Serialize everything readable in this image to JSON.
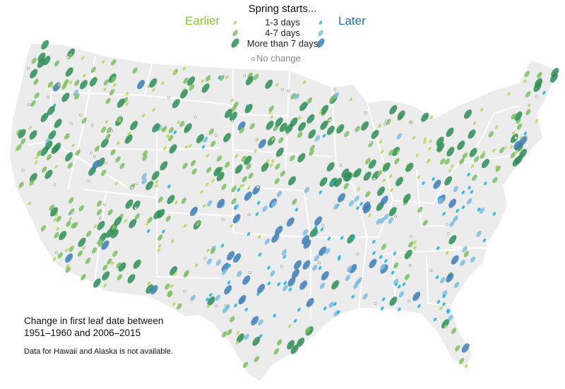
{
  "legend": {
    "title": "Spring starts...",
    "earlier_label": "Earlier",
    "later_label": "Later",
    "levels": [
      "1-3 days",
      "4-7 days",
      "More than 7 days"
    ],
    "no_change_label": "No change",
    "colors": {
      "earlier": [
        "#b9d65a",
        "#7cc063",
        "#2d8f56"
      ],
      "later": [
        "#14b1e7",
        "#7cbde2",
        "#3c7eb8"
      ],
      "map_fill": "#ececec",
      "state_border": "#ffffff"
    }
  },
  "caption": {
    "line1": "Change in first leaf date between",
    "line2": "1951–1960 and 2006–2015"
  },
  "note": "Data for Hawaii and Alaska is not available."
}
